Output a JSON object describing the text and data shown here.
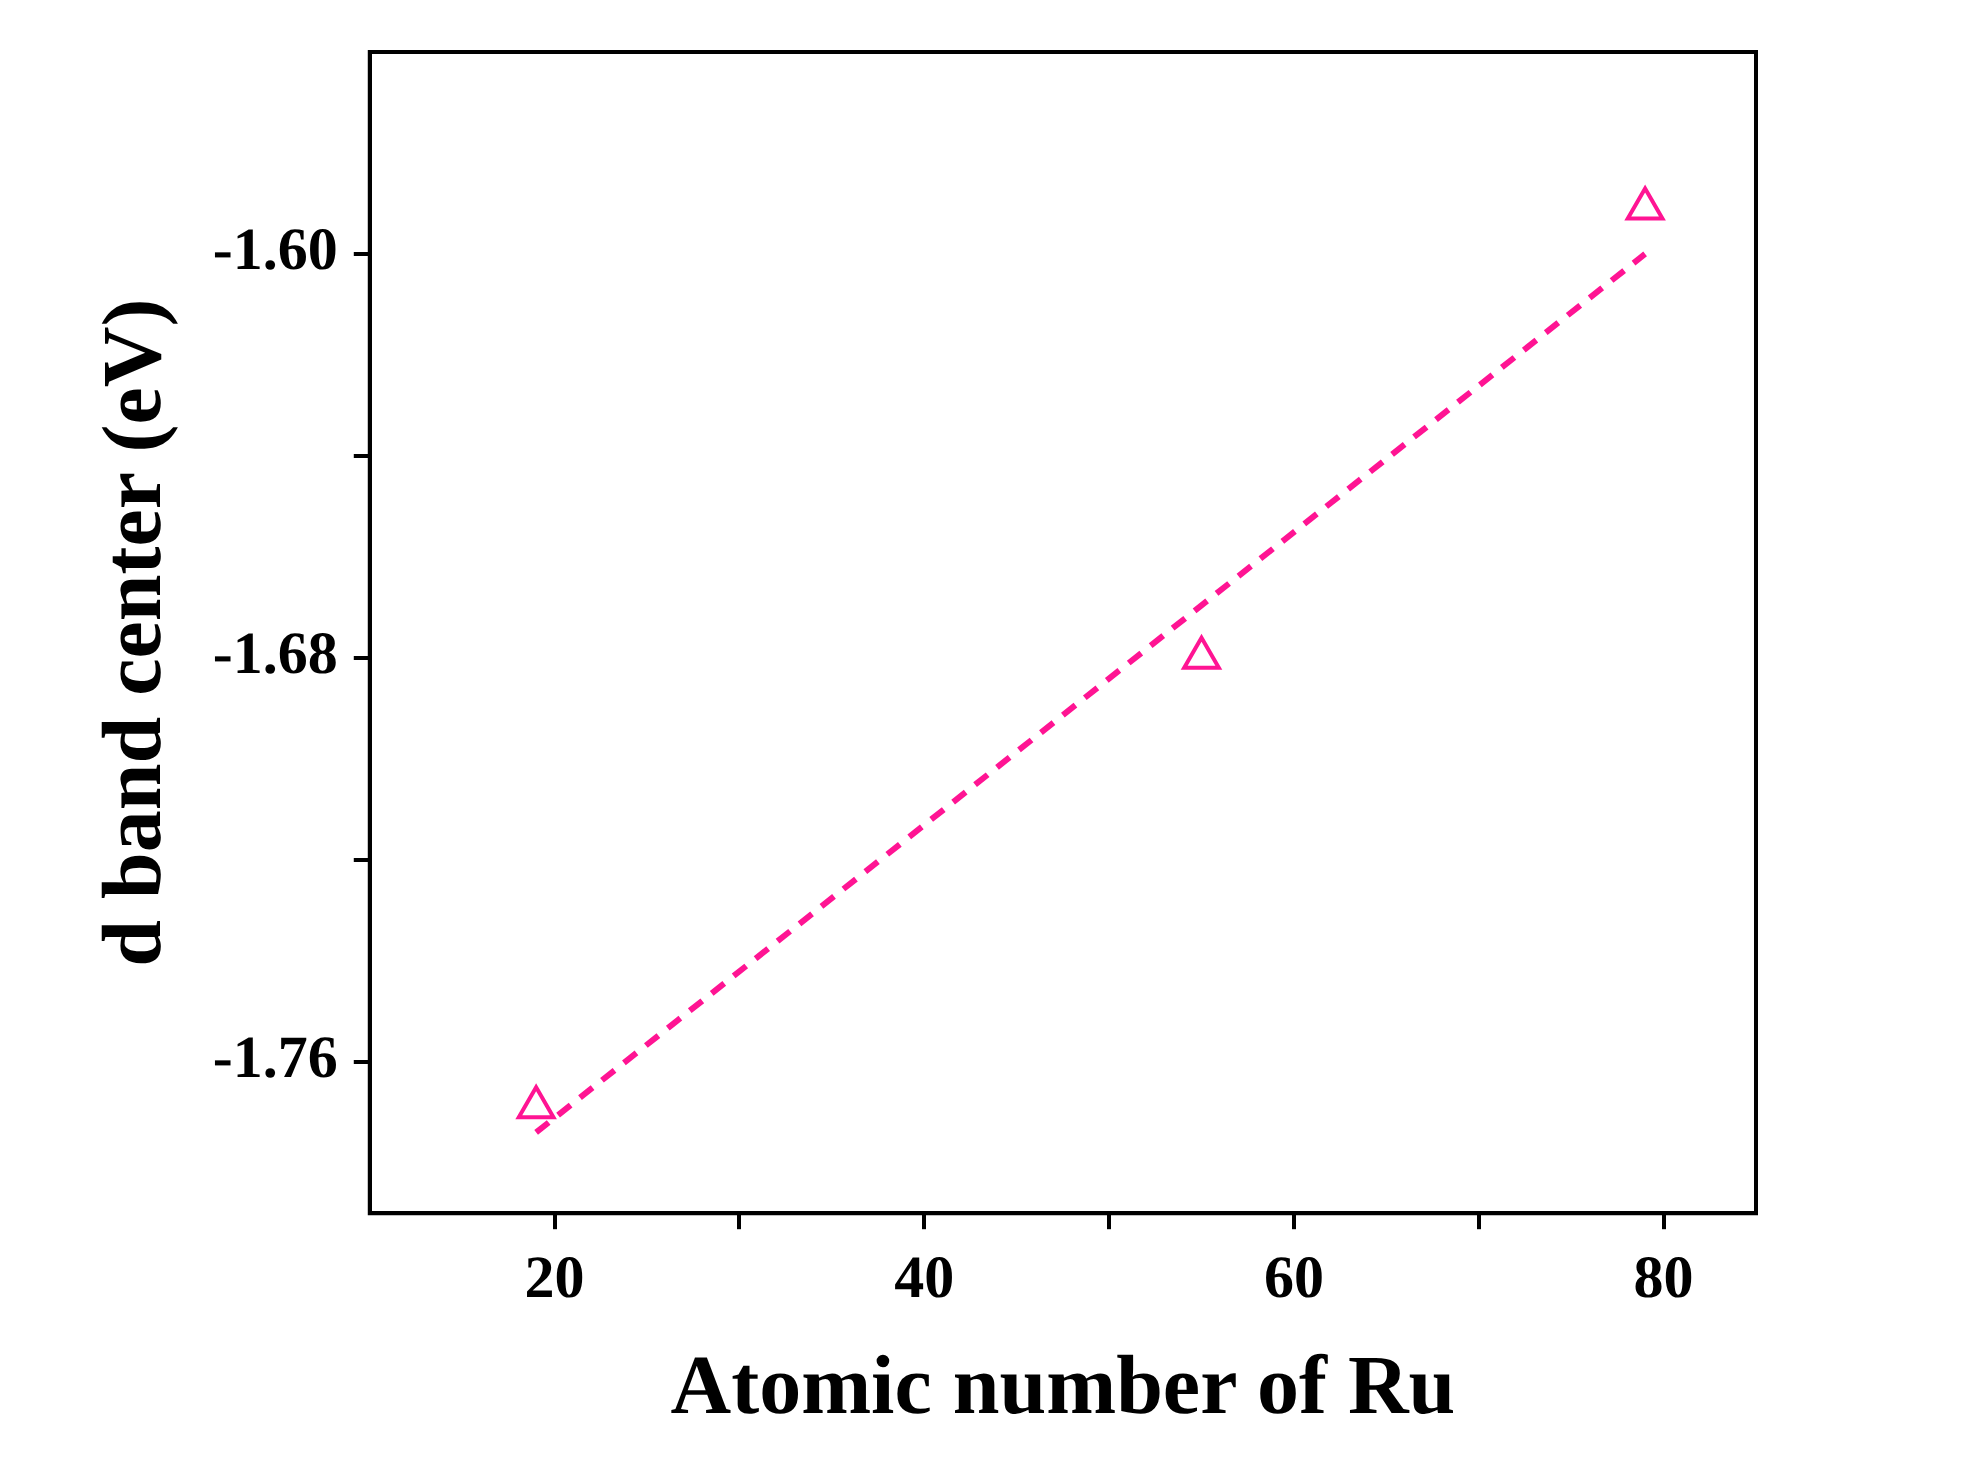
{
  "chart_data": {
    "type": "scatter",
    "xlabel": "Atomic number of Ru",
    "ylabel": "d band center (eV)",
    "xlim": [
      10,
      85
    ],
    "xticks": [
      20,
      {
        "value": 30,
        "label": null
      },
      40,
      {
        "value": 50,
        "label": null
      },
      60,
      {
        "value": 70,
        "label": null
      },
      80
    ],
    "ylim": [
      -1.79,
      -1.56
    ],
    "yticks": [
      {
        "value": -1.76,
        "label": "-1.76"
      },
      {
        "value": -1.72,
        "label": null
      },
      {
        "value": -1.68,
        "label": "-1.68"
      },
      {
        "value": -1.64,
        "label": null
      },
      {
        "value": -1.6,
        "label": "-1.60"
      }
    ],
    "grid": false,
    "legend": false,
    "series": [
      {
        "color": "#ff1493",
        "marker": "triangle",
        "x": [
          19,
          55,
          79
        ],
        "values": [
          -1.769,
          -1.68,
          -1.591
        ]
      },
      {
        "type": "line",
        "color": "#ff1493",
        "marker": "none",
        "line_style": "dashed",
        "x": [
          19,
          79
        ],
        "values": [
          -1.774,
          -1.6
        ]
      }
    ]
  }
}
